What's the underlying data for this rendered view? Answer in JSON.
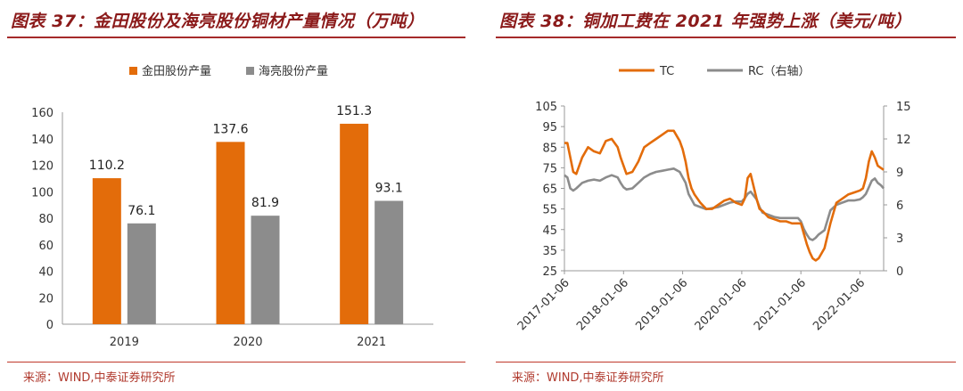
{
  "left": {
    "title": "图表 37：金田股份及海亮股份铜材产量情况（万吨）",
    "source": "来源：WIND,中泰证券研究所"
  },
  "right": {
    "title": "图表 38：铜加工费在 2021 年强势上涨（美元/吨）",
    "source": "来源：WIND,中泰证券研究所"
  },
  "chart_data": [
    {
      "type": "bar",
      "title": "图表 37：金田股份及海亮股份铜材产量情况（万吨）",
      "categories": [
        "2019",
        "2020",
        "2021"
      ],
      "series": [
        {
          "name": "金田股份产量",
          "color": "#E36C0A",
          "values": [
            110.2,
            137.6,
            151.3
          ]
        },
        {
          "name": "海亮股份产量",
          "color": "#8C8C8C",
          "values": [
            76.1,
            81.9,
            93.1
          ]
        }
      ],
      "ylim": [
        0,
        160
      ],
      "yticks": [
        0,
        20,
        40,
        60,
        80,
        100,
        120,
        140,
        160
      ],
      "legend": "top",
      "xlabel": "",
      "ylabel": ""
    },
    {
      "type": "line",
      "title": "图表 38：铜加工费在 2021 年强势上涨（美元/吨）",
      "x_tick_labels": [
        "2017-01-06",
        "2018-01-06",
        "2019-01-06",
        "2020-01-06",
        "2021-01-06",
        "2022-01-06"
      ],
      "x_range": [
        2017.0,
        2022.4
      ],
      "ylim_left": [
        25,
        105
      ],
      "yticks_left": [
        25,
        35,
        45,
        55,
        65,
        75,
        85,
        95,
        105
      ],
      "ylim_right": [
        0,
        15
      ],
      "yticks_right": [
        0,
        3,
        6,
        9,
        12,
        15
      ],
      "legend": "top",
      "series": [
        {
          "name": "TC",
          "axis": "left",
          "color": "#E36C0A",
          "x": [
            2017.0,
            2017.05,
            2017.1,
            2017.15,
            2017.2,
            2017.3,
            2017.4,
            2017.5,
            2017.6,
            2017.7,
            2017.8,
            2017.9,
            2017.95,
            2018.0,
            2018.05,
            2018.15,
            2018.25,
            2018.35,
            2018.45,
            2018.55,
            2018.65,
            2018.75,
            2018.85,
            2018.95,
            2019.0,
            2019.05,
            2019.1,
            2019.15,
            2019.2,
            2019.3,
            2019.4,
            2019.5,
            2019.6,
            2019.7,
            2019.8,
            2019.9,
            2020.0,
            2020.05,
            2020.1,
            2020.15,
            2020.25,
            2020.3,
            2020.35,
            2020.45,
            2020.55,
            2020.65,
            2020.75,
            2020.85,
            2020.95,
            2021.0,
            2021.05,
            2021.1,
            2021.15,
            2021.2,
            2021.25,
            2021.3,
            2021.4,
            2021.5,
            2021.6,
            2021.7,
            2021.8,
            2021.9,
            2022.0,
            2022.05,
            2022.1,
            2022.15,
            2022.2,
            2022.25,
            2022.3,
            2022.35,
            2022.4
          ],
          "y": [
            87,
            87,
            80,
            73,
            72,
            80,
            85,
            83,
            82,
            88,
            89,
            85,
            80,
            76,
            72,
            73,
            78,
            85,
            87,
            89,
            91,
            93,
            93,
            88,
            84,
            78,
            70,
            65,
            62,
            58,
            55,
            55,
            57,
            59,
            60,
            58,
            57,
            60,
            70,
            72,
            60,
            55,
            54,
            51,
            50,
            49,
            49,
            48,
            48,
            48,
            43,
            38,
            34,
            31,
            30,
            31,
            36,
            48,
            58,
            60,
            62,
            63,
            64,
            65,
            70,
            78,
            83,
            80,
            76,
            75,
            74
          ]
        },
        {
          "name": "RC（右轴）",
          "axis": "right",
          "color": "#8C8C8C",
          "x": [
            2017.0,
            2017.05,
            2017.1,
            2017.15,
            2017.2,
            2017.3,
            2017.4,
            2017.5,
            2017.6,
            2017.7,
            2017.8,
            2017.9,
            2017.95,
            2018.0,
            2018.05,
            2018.15,
            2018.25,
            2018.35,
            2018.45,
            2018.55,
            2018.65,
            2018.75,
            2018.85,
            2018.95,
            2019.0,
            2019.05,
            2019.1,
            2019.15,
            2019.2,
            2019.3,
            2019.4,
            2019.5,
            2019.6,
            2019.7,
            2019.8,
            2019.9,
            2020.0,
            2020.05,
            2020.1,
            2020.15,
            2020.25,
            2020.3,
            2020.35,
            2020.45,
            2020.55,
            2020.65,
            2020.75,
            2020.85,
            2020.95,
            2021.0,
            2021.05,
            2021.1,
            2021.15,
            2021.2,
            2021.25,
            2021.3,
            2021.4,
            2021.5,
            2021.6,
            2021.7,
            2021.8,
            2021.9,
            2022.0,
            2022.05,
            2022.1,
            2022.15,
            2022.2,
            2022.25,
            2022.3,
            2022.35,
            2022.4
          ],
          "y": [
            8.7,
            8.5,
            7.5,
            7.3,
            7.5,
            8.0,
            8.2,
            8.3,
            8.2,
            8.5,
            8.7,
            8.5,
            8.0,
            7.6,
            7.4,
            7.5,
            8.0,
            8.5,
            8.8,
            9.0,
            9.1,
            9.2,
            9.3,
            9.0,
            8.5,
            8.0,
            7.0,
            6.5,
            6.0,
            5.8,
            5.6,
            5.7,
            5.8,
            6.0,
            6.2,
            6.3,
            6.3,
            6.6,
            7.0,
            7.2,
            6.5,
            5.8,
            5.3,
            5.1,
            4.9,
            4.8,
            4.8,
            4.8,
            4.8,
            4.5,
            3.8,
            3.3,
            2.9,
            2.8,
            3.0,
            3.3,
            3.7,
            5.5,
            6.0,
            6.2,
            6.4,
            6.4,
            6.5,
            6.7,
            7.0,
            7.6,
            8.2,
            8.4,
            8.0,
            7.8,
            7.5
          ]
        }
      ]
    }
  ]
}
